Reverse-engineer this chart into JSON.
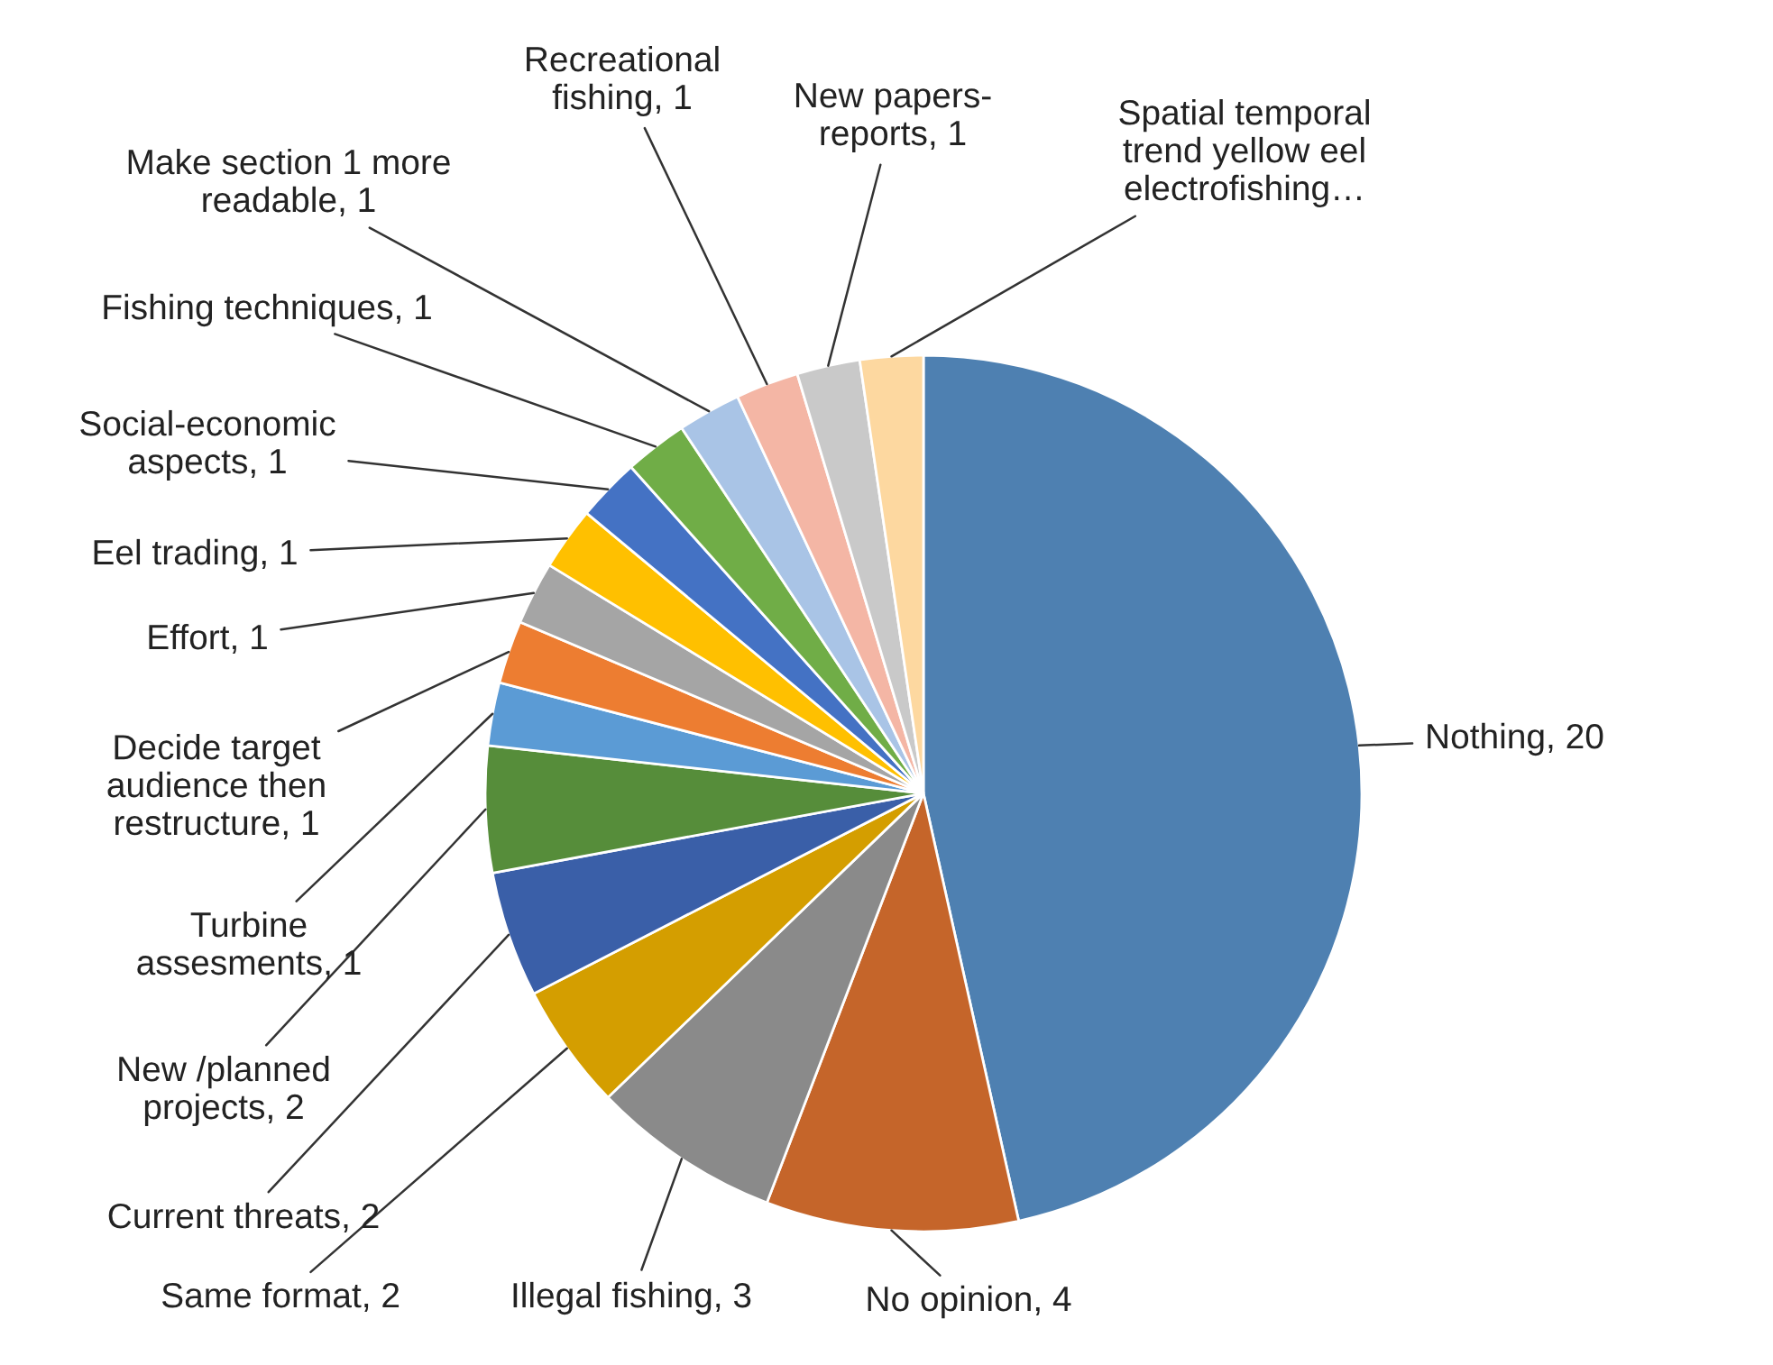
{
  "chart_data": {
    "type": "pie",
    "categories": [
      "Nothing",
      "No opinion",
      "Illegal fishing",
      "Same format",
      "Current threats",
      "New /planned\nprojects",
      "Turbine\nassesments",
      "Decide target\naudience then\nrestructure",
      "Effort",
      "Eel trading",
      "Social-economic\naspects",
      "Fishing techniques",
      "Make section 1 more\nreadable",
      "Recreational\nfishing",
      "New papers-\nreports",
      "Spatial temporal\ntrend yellow eel\nelectrofishing…"
    ],
    "values": [
      20,
      4,
      3,
      2,
      2,
      2,
      1,
      1,
      1,
      1,
      1,
      1,
      1,
      1,
      1,
      1
    ],
    "value_labels": [
      "20",
      "4",
      "3",
      "2",
      "2",
      "2",
      "1",
      "1",
      "1",
      "1",
      "1",
      "1",
      "1",
      "1",
      "1",
      null
    ],
    "colors": [
      "#4e80b1",
      "#c5652a",
      "#8a8a8a",
      "#d49e00",
      "#3a5fa8",
      "#568d3a",
      "#5b9bd5",
      "#ed7d31",
      "#a5a5a5",
      "#ffc000",
      "#4472c4",
      "#70ad47",
      "#a9c4e6",
      "#f4b6a5",
      "#c9c9c9",
      "#fdd8a0"
    ]
  }
}
